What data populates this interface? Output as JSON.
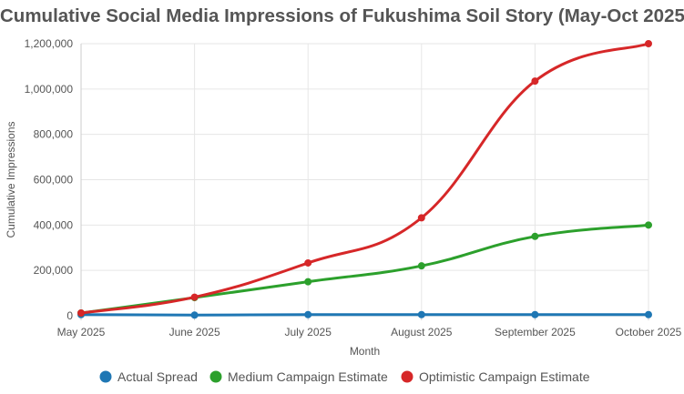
{
  "chart_data": {
    "type": "line",
    "title": "Cumulative Social Media Impressions of Fukushima Soil Story (May-Oct 2025)",
    "xlabel": "Month",
    "ylabel": "Cumulative Impressions",
    "categories": [
      "May 2025",
      "June 2025",
      "July 2025",
      "August 2025",
      "September 2025",
      "October 2025"
    ],
    "ylim": [
      0,
      1200000
    ],
    "yticks": [
      0,
      200000,
      400000,
      600000,
      800000,
      1000000,
      1200000
    ],
    "ytick_labels": [
      "0",
      "200,000",
      "400,000",
      "600,000",
      "800,000",
      "1,000,000",
      "1,200,000"
    ],
    "grid": true,
    "legend_position": "bottom",
    "series": [
      {
        "name": "Actual Spread",
        "color": "#1f77b4",
        "values": [
          5000,
          3000,
          5000,
          5000,
          5000,
          5000
        ]
      },
      {
        "name": "Medium Campaign Estimate",
        "color": "#2ca02c",
        "values": [
          12000,
          80000,
          150000,
          220000,
          350000,
          400000
        ]
      },
      {
        "name": "Optimistic Campaign Estimate",
        "color": "#d62728",
        "values": [
          12000,
          82000,
          233000,
          432000,
          1035000,
          1200000
        ]
      }
    ]
  }
}
